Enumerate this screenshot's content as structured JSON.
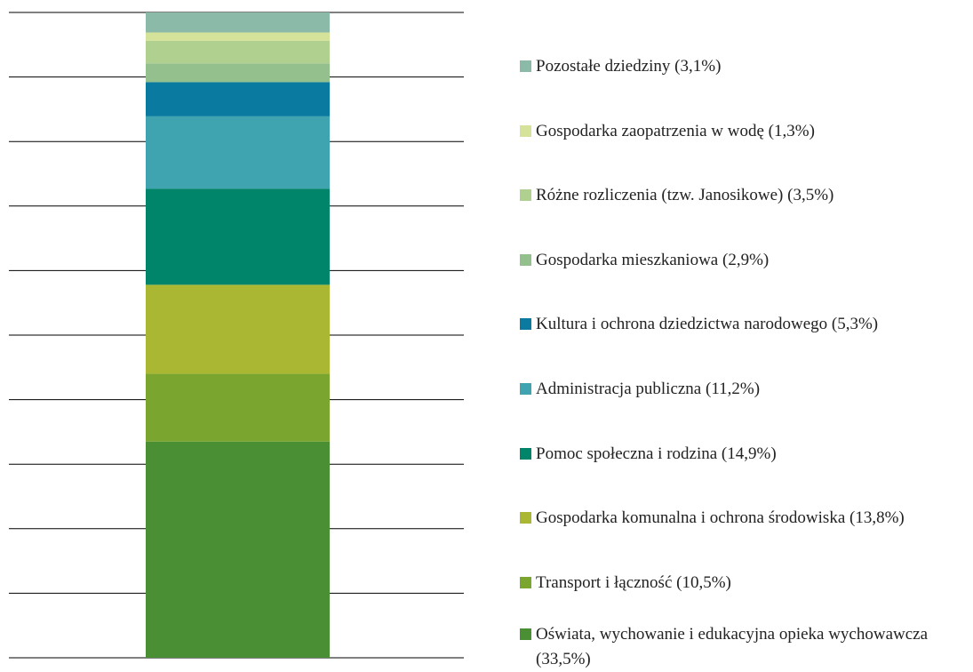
{
  "chart_data": {
    "type": "stacked_bar",
    "categories": [
      null
    ],
    "series": [
      {
        "name": "Oświata, wychowanie i edukacyjna opieka wychowawcza (33,5%)",
        "color": "#4a8f33",
        "values": [
          33.5
        ]
      },
      {
        "name": "Transport i łączność (10,5%)",
        "color": "#7aa62f",
        "values": [
          10.5
        ]
      },
      {
        "name": "Gospodarka komunalna i ochrona środowiska (13,8%)",
        "color": "#aab733",
        "values": [
          13.8
        ]
      },
      {
        "name": "Pomoc społeczna i rodzina (14,9%)",
        "color": "#00856a",
        "values": [
          14.9
        ]
      },
      {
        "name": "Administracja publiczna (11,2%)",
        "color": "#40a3b0",
        "values": [
          11.2
        ]
      },
      {
        "name": "Kultura i ochrona dziedzictwa narodowego (5,3%)",
        "color": "#0a7aa0",
        "values": [
          5.3
        ]
      },
      {
        "name": "Gospodarka mieszkaniowa (2,9%)",
        "color": "#94c08e",
        "values": [
          2.9
        ]
      },
      {
        "name": "Różne rozliczenia (tzw. Janosikowe) (3,5%)",
        "color": "#b0d08f",
        "values": [
          3.5
        ]
      },
      {
        "name": "Gospodarka zaopatrzenia w wodę (1,3%)",
        "color": "#d4e29a",
        "values": [
          1.3
        ]
      },
      {
        "name": "Pozostałe dziedziny (3,1%)",
        "color": "#8cbaa8",
        "values": [
          3.1
        ]
      }
    ],
    "ylim": [
      0,
      100
    ],
    "yticks": [
      0,
      10,
      20,
      30,
      40,
      50,
      60,
      70,
      80,
      90,
      100
    ],
    "grid": true
  }
}
